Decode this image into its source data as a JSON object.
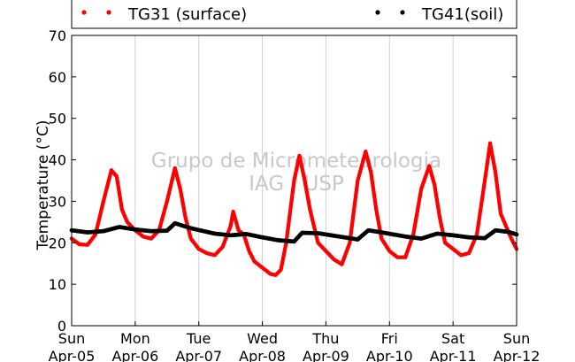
{
  "chart_data": {
    "type": "scatter",
    "title": "",
    "ylabel": "Temperature (°C)",
    "xlabel": "",
    "ylim": [
      0,
      70
    ],
    "yticks": [
      0,
      10,
      20,
      30,
      40,
      50,
      60,
      70
    ],
    "xlim": [
      "2015-04-05 00:00",
      "2015-04-12 00:00"
    ],
    "xticks": [
      {
        "day": "Sun",
        "date": "Apr-05"
      },
      {
        "day": "Mon",
        "date": "Apr-06"
      },
      {
        "day": "Tue",
        "date": "Apr-07"
      },
      {
        "day": "Wed",
        "date": "Apr-08"
      },
      {
        "day": "Thu",
        "date": "Apr-09"
      },
      {
        "day": "Fri",
        "date": "Apr-10"
      },
      {
        "day": "Sat",
        "date": "Apr-11"
      },
      {
        "day": "Sun",
        "date": "Apr-12"
      }
    ],
    "grid": "vertical",
    "legend_position": "top",
    "series": [
      {
        "name": "TG31 (surface)",
        "color": "#ff0000",
        "marker": "dot",
        "points": [
          [
            "2015-04-05 00:00",
            21.0
          ],
          [
            "2015-04-05 03:00",
            19.6
          ],
          [
            "2015-04-05 06:00",
            19.5
          ],
          [
            "2015-04-05 09:00",
            22.0
          ],
          [
            "2015-04-05 12:00",
            30.0
          ],
          [
            "2015-04-05 15:00",
            37.5
          ],
          [
            "2015-04-05 17:00",
            36.0
          ],
          [
            "2015-04-05 19:00",
            28.0
          ],
          [
            "2015-04-05 21:00",
            25.0
          ],
          [
            "2015-04-06 00:00",
            23.0
          ],
          [
            "2015-04-06 03:00",
            21.5
          ],
          [
            "2015-04-06 06:00",
            21.0
          ],
          [
            "2015-04-06 09:00",
            23.0
          ],
          [
            "2015-04-06 12:00",
            30.0
          ],
          [
            "2015-04-06 15:00",
            38.0
          ],
          [
            "2015-04-06 17:00",
            33.0
          ],
          [
            "2015-04-06 19:00",
            26.0
          ],
          [
            "2015-04-06 21:00",
            21.0
          ],
          [
            "2015-04-07 00:00",
            18.5
          ],
          [
            "2015-04-07 03:00",
            17.5
          ],
          [
            "2015-04-07 06:00",
            17.0
          ],
          [
            "2015-04-07 09:00",
            19.0
          ],
          [
            "2015-04-07 12:00",
            24.0
          ],
          [
            "2015-04-07 13:00",
            27.5
          ],
          [
            "2015-04-07 15:00",
            23.0
          ],
          [
            "2015-04-07 17:00",
            22.0
          ],
          [
            "2015-04-07 19:00",
            18.0
          ],
          [
            "2015-04-07 21:00",
            15.5
          ],
          [
            "2015-04-08 00:00",
            14.0
          ],
          [
            "2015-04-08 03:00",
            12.5
          ],
          [
            "2015-04-08 05:00",
            12.2
          ],
          [
            "2015-04-08 07:00",
            13.5
          ],
          [
            "2015-04-08 09:00",
            20.0
          ],
          [
            "2015-04-08 12:00",
            35.0
          ],
          [
            "2015-04-08 14:00",
            41.0
          ],
          [
            "2015-04-08 16:00",
            35.0
          ],
          [
            "2015-04-08 18:00",
            28.0
          ],
          [
            "2015-04-08 21:00",
            20.0
          ],
          [
            "2015-04-09 00:00",
            18.0
          ],
          [
            "2015-04-09 03:00",
            16.0
          ],
          [
            "2015-04-09 06:00",
            14.8
          ],
          [
            "2015-04-09 09:00",
            20.0
          ],
          [
            "2015-04-09 12:00",
            35.0
          ],
          [
            "2015-04-09 15:00",
            42.0
          ],
          [
            "2015-04-09 17:00",
            37.0
          ],
          [
            "2015-04-09 19:00",
            28.0
          ],
          [
            "2015-04-09 21:00",
            21.0
          ],
          [
            "2015-04-10 00:00",
            18.0
          ],
          [
            "2015-04-10 03:00",
            16.5
          ],
          [
            "2015-04-10 06:00",
            16.5
          ],
          [
            "2015-04-10 09:00",
            22.0
          ],
          [
            "2015-04-10 12:00",
            33.0
          ],
          [
            "2015-04-10 15:00",
            38.5
          ],
          [
            "2015-04-10 17:00",
            34.0
          ],
          [
            "2015-04-10 19:00",
            26.0
          ],
          [
            "2015-04-10 21:00",
            20.0
          ],
          [
            "2015-04-11 00:00",
            18.5
          ],
          [
            "2015-04-11 03:00",
            17.0
          ],
          [
            "2015-04-11 06:00",
            17.5
          ],
          [
            "2015-04-11 09:00",
            22.0
          ],
          [
            "2015-04-11 12:00",
            35.0
          ],
          [
            "2015-04-11 14:00",
            44.0
          ],
          [
            "2015-04-11 16:00",
            37.0
          ],
          [
            "2015-04-11 18:00",
            27.0
          ],
          [
            "2015-04-11 20:00",
            24.0
          ],
          [
            "2015-04-11 22:00",
            21.0
          ],
          [
            "2015-04-12 00:00",
            18.5
          ]
        ]
      },
      {
        "name": "TG41(soil)",
        "color": "#000000",
        "marker": "dot",
        "points": [
          [
            "2015-04-05 00:00",
            23.0
          ],
          [
            "2015-04-05 06:00",
            22.5
          ],
          [
            "2015-04-05 12:00",
            22.8
          ],
          [
            "2015-04-05 18:00",
            23.8
          ],
          [
            "2015-04-06 00:00",
            23.2
          ],
          [
            "2015-04-06 06:00",
            22.8
          ],
          [
            "2015-04-06 12:00",
            22.9
          ],
          [
            "2015-04-06 15:00",
            24.7
          ],
          [
            "2015-04-06 21:00",
            23.5
          ],
          [
            "2015-04-07 06:00",
            22.2
          ],
          [
            "2015-04-07 12:00",
            21.8
          ],
          [
            "2015-04-07 18:00",
            22.1
          ],
          [
            "2015-04-08 00:00",
            21.3
          ],
          [
            "2015-04-08 06:00",
            20.6
          ],
          [
            "2015-04-08 12:00",
            20.3
          ],
          [
            "2015-04-08 15:00",
            22.4
          ],
          [
            "2015-04-08 21:00",
            22.3
          ],
          [
            "2015-04-09 06:00",
            21.4
          ],
          [
            "2015-04-09 12:00",
            20.8
          ],
          [
            "2015-04-09 16:00",
            23.0
          ],
          [
            "2015-04-09 21:00",
            22.5
          ],
          [
            "2015-04-10 06:00",
            21.5
          ],
          [
            "2015-04-10 12:00",
            21.0
          ],
          [
            "2015-04-10 18:00",
            22.2
          ],
          [
            "2015-04-11 00:00",
            21.8
          ],
          [
            "2015-04-11 06:00",
            21.3
          ],
          [
            "2015-04-11 12:00",
            21.1
          ],
          [
            "2015-04-11 16:00",
            23.0
          ],
          [
            "2015-04-11 21:00",
            22.6
          ],
          [
            "2015-04-12 00:00",
            22.0
          ]
        ]
      }
    ]
  },
  "watermark": {
    "line1": "Grupo de Micrometeorologia",
    "line2": "IAG / USP"
  }
}
